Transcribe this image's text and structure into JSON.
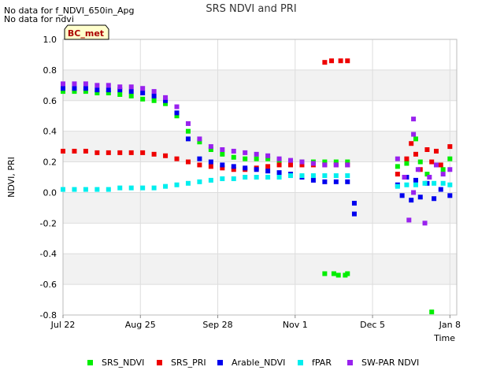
{
  "notes": [
    "No data for f_NDVI_650in_Apg",
    "No data for ndvi"
  ],
  "badge": "BC_met",
  "chart_data": {
    "type": "scatter",
    "title": "SRS NDVI and PRI",
    "xlabel": "Time",
    "ylabel": "NDVI, PRI",
    "x_type": "date",
    "xlim": [
      "2023-07-22",
      "2024-01-11"
    ],
    "ylim": [
      -0.8,
      1.0
    ],
    "x_ticks": [
      {
        "date": "2023-07-22",
        "label": "Jul 22"
      },
      {
        "date": "2023-08-25",
        "label": "Aug 25"
      },
      {
        "date": "2023-09-28",
        "label": "Sep 28"
      },
      {
        "date": "2023-11-01",
        "label": "Nov 1"
      },
      {
        "date": "2023-12-05",
        "label": "Dec 5"
      },
      {
        "date": "2024-01-08",
        "label": "Jan 8"
      }
    ],
    "y_ticks": [
      -0.8,
      -0.6,
      -0.4,
      -0.2,
      0.0,
      0.2,
      0.4,
      0.6,
      0.8,
      1.0
    ],
    "y_tick_labels": [
      "-0.8",
      "-0.6",
      "-0.4",
      "-0.2",
      "0.0",
      "0.2",
      "0.4",
      "0.6",
      "0.8",
      "1.0"
    ],
    "grid": true,
    "legend_position": "bottom",
    "series": [
      {
        "name": "SRS_NDVI",
        "color": "#00ee00",
        "x": [
          "2023-07-22",
          "2023-07-27",
          "2023-08-01",
          "2023-08-06",
          "2023-08-11",
          "2023-08-16",
          "2023-08-21",
          "2023-08-26",
          "2023-08-31",
          "2023-09-05",
          "2023-09-10",
          "2023-09-15",
          "2023-09-20",
          "2023-09-25",
          "2023-09-30",
          "2023-10-05",
          "2023-10-10",
          "2023-10-15",
          "2023-10-20",
          "2023-10-25",
          "2023-10-30",
          "2023-11-04",
          "2023-11-09",
          "2023-11-14",
          "2023-11-19",
          "2023-11-24",
          "2023-11-14",
          "2023-11-18",
          "2023-11-20",
          "2023-11-23",
          "2023-11-24",
          "2023-12-16",
          "2023-12-20",
          "2023-12-24",
          "2023-12-26",
          "2023-12-29",
          "2024-01-02",
          "2024-01-05",
          "2023-12-31",
          "2024-01-08"
        ],
        "y": [
          0.66,
          0.66,
          0.66,
          0.65,
          0.65,
          0.64,
          0.63,
          0.61,
          0.6,
          0.58,
          0.5,
          0.4,
          0.33,
          0.28,
          0.25,
          0.23,
          0.22,
          0.22,
          0.22,
          0.21,
          0.2,
          0.2,
          0.2,
          0.2,
          0.2,
          0.2,
          -0.53,
          -0.53,
          -0.54,
          -0.54,
          -0.53,
          0.17,
          0.19,
          0.35,
          0.2,
          0.12,
          0.18,
          0.15,
          -0.78,
          0.22
        ]
      },
      {
        "name": "SRS_PRI",
        "color": "#ee0000",
        "x": [
          "2023-07-22",
          "2023-07-27",
          "2023-08-01",
          "2023-08-06",
          "2023-08-11",
          "2023-08-16",
          "2023-08-21",
          "2023-08-26",
          "2023-08-31",
          "2023-09-05",
          "2023-09-10",
          "2023-09-15",
          "2023-09-20",
          "2023-09-25",
          "2023-09-30",
          "2023-10-05",
          "2023-10-10",
          "2023-10-15",
          "2023-10-20",
          "2023-10-25",
          "2023-10-30",
          "2023-11-04",
          "2023-11-09",
          "2023-11-14",
          "2023-11-19",
          "2023-11-24",
          "2023-11-14",
          "2023-11-17",
          "2023-11-21",
          "2023-11-24",
          "2023-12-16",
          "2023-12-20",
          "2023-12-22",
          "2023-12-24",
          "2023-12-26",
          "2023-12-29",
          "2023-12-31",
          "2024-01-02",
          "2024-01-04",
          "2024-01-08"
        ],
        "y": [
          0.27,
          0.27,
          0.27,
          0.26,
          0.26,
          0.26,
          0.26,
          0.26,
          0.25,
          0.24,
          0.22,
          0.2,
          0.18,
          0.17,
          0.16,
          0.15,
          0.15,
          0.16,
          0.17,
          0.18,
          0.18,
          0.18,
          0.18,
          0.18,
          0.18,
          0.18,
          0.85,
          0.86,
          0.86,
          0.86,
          0.12,
          0.22,
          0.32,
          0.25,
          0.15,
          0.28,
          0.2,
          0.27,
          0.18,
          0.3
        ]
      },
      {
        "name": "Arable_NDVI",
        "color": "#0000ee",
        "x": [
          "2023-07-22",
          "2023-07-27",
          "2023-08-01",
          "2023-08-06",
          "2023-08-11",
          "2023-08-16",
          "2023-08-21",
          "2023-08-26",
          "2023-08-31",
          "2023-09-05",
          "2023-09-10",
          "2023-09-15",
          "2023-09-20",
          "2023-09-25",
          "2023-09-30",
          "2023-10-05",
          "2023-10-10",
          "2023-10-15",
          "2023-10-20",
          "2023-10-25",
          "2023-10-30",
          "2023-11-04",
          "2023-11-09",
          "2023-11-14",
          "2023-11-19",
          "2023-11-24",
          "2023-11-27",
          "2023-11-27",
          "2023-12-16",
          "2023-12-18",
          "2023-12-20",
          "2023-12-22",
          "2023-12-24",
          "2023-12-26",
          "2023-12-29",
          "2024-01-01",
          "2024-01-04",
          "2024-01-08"
        ],
        "y": [
          0.68,
          0.68,
          0.68,
          0.67,
          0.67,
          0.67,
          0.66,
          0.65,
          0.63,
          0.6,
          0.52,
          0.35,
          0.22,
          0.2,
          0.18,
          0.17,
          0.16,
          0.15,
          0.14,
          0.13,
          0.12,
          0.1,
          0.08,
          0.07,
          0.07,
          0.07,
          -0.07,
          -0.14,
          0.05,
          -0.02,
          0.1,
          -0.05,
          0.08,
          -0.03,
          0.06,
          -0.04,
          0.02,
          -0.02
        ]
      },
      {
        "name": "fPAR",
        "color": "#00eeee",
        "x": [
          "2023-07-22",
          "2023-07-27",
          "2023-08-01",
          "2023-08-06",
          "2023-08-11",
          "2023-08-16",
          "2023-08-21",
          "2023-08-26",
          "2023-08-31",
          "2023-09-05",
          "2023-09-10",
          "2023-09-15",
          "2023-09-20",
          "2023-09-25",
          "2023-09-30",
          "2023-10-05",
          "2023-10-10",
          "2023-10-15",
          "2023-10-20",
          "2023-10-25",
          "2023-10-30",
          "2023-11-04",
          "2023-11-09",
          "2023-11-14",
          "2023-11-19",
          "2023-11-24",
          "2023-12-16",
          "2023-12-20",
          "2023-12-24",
          "2023-12-28",
          "2024-01-01",
          "2024-01-05",
          "2024-01-08"
        ],
        "y": [
          0.02,
          0.02,
          0.02,
          0.02,
          0.02,
          0.03,
          0.03,
          0.03,
          0.03,
          0.04,
          0.05,
          0.06,
          0.07,
          0.08,
          0.09,
          0.09,
          0.1,
          0.1,
          0.1,
          0.1,
          0.11,
          0.11,
          0.11,
          0.11,
          0.11,
          0.11,
          0.04,
          0.05,
          0.05,
          0.06,
          0.06,
          0.06,
          0.05
        ]
      },
      {
        "name": "SW-PAR NDVI",
        "color": "#9922ee",
        "x": [
          "2023-07-22",
          "2023-07-27",
          "2023-08-01",
          "2023-08-06",
          "2023-08-11",
          "2023-08-16",
          "2023-08-21",
          "2023-08-26",
          "2023-08-31",
          "2023-09-05",
          "2023-09-10",
          "2023-09-15",
          "2023-09-20",
          "2023-09-25",
          "2023-09-30",
          "2023-10-05",
          "2023-10-10",
          "2023-10-15",
          "2023-10-20",
          "2023-10-25",
          "2023-10-30",
          "2023-11-04",
          "2023-11-09",
          "2023-11-14",
          "2023-11-19",
          "2023-11-24",
          "2023-12-16",
          "2023-12-19",
          "2023-12-21",
          "2023-12-23",
          "2023-12-23",
          "2023-12-23",
          "2023-12-25",
          "2023-12-28",
          "2023-12-30",
          "2024-01-02",
          "2024-01-05",
          "2024-01-08"
        ],
        "y": [
          0.71,
          0.71,
          0.71,
          0.7,
          0.7,
          0.69,
          0.69,
          0.68,
          0.66,
          0.62,
          0.56,
          0.45,
          0.35,
          0.3,
          0.28,
          0.27,
          0.26,
          0.25,
          0.24,
          0.22,
          0.21,
          0.2,
          0.19,
          0.18,
          0.18,
          0.18,
          0.22,
          0.1,
          -0.18,
          0.48,
          0.38,
          0.0,
          0.15,
          -0.2,
          0.1,
          0.18,
          0.12,
          0.15
        ]
      }
    ]
  }
}
